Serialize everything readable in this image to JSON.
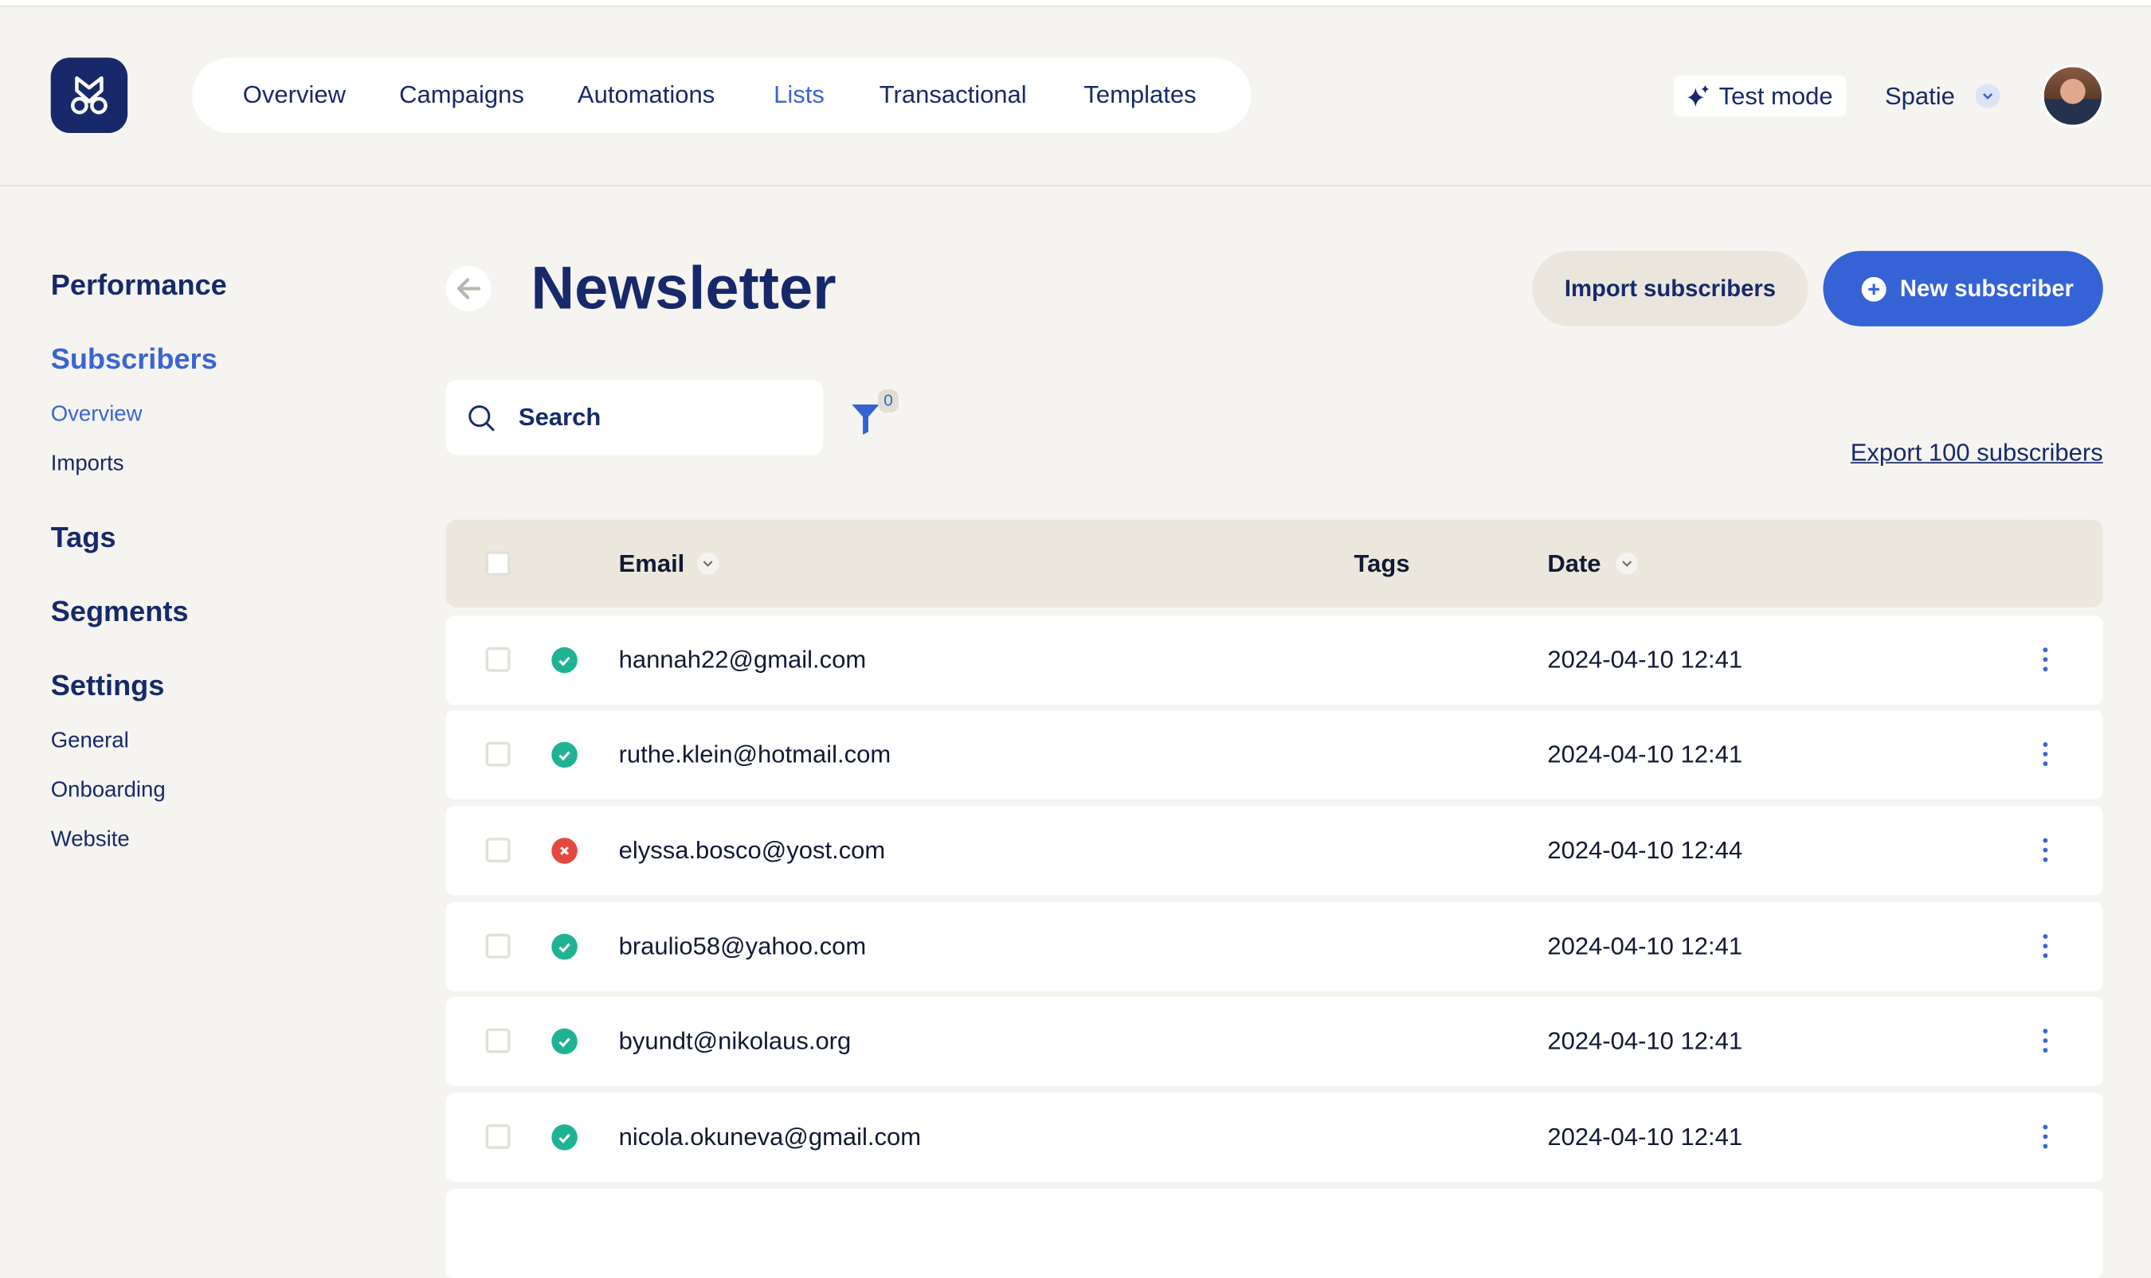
{
  "nav": {
    "items": [
      {
        "label": "Overview",
        "active": false
      },
      {
        "label": "Campaigns",
        "active": false
      },
      {
        "label": "Automations",
        "active": false
      },
      {
        "label": "Lists",
        "active": true
      },
      {
        "label": "Transactional",
        "active": false
      },
      {
        "label": "Templates",
        "active": false
      }
    ]
  },
  "header": {
    "test_mode": "Test mode",
    "team": "Spatie",
    "test_icon": "sparkles-icon"
  },
  "sidebar": {
    "performance": "Performance",
    "subscribers": "Subscribers",
    "subscribers_overview": "Overview",
    "imports": "Imports",
    "tags": "Tags",
    "segments": "Segments",
    "settings": "Settings",
    "general": "General",
    "onboarding": "Onboarding",
    "website": "Website"
  },
  "page": {
    "title": "Newsletter",
    "import_button": "Import subscribers",
    "new_button": "New subscriber",
    "search_placeholder": "Search",
    "filter_count": "0",
    "export_link": "Export 100 subscribers"
  },
  "table": {
    "columns": {
      "email": "Email",
      "tags": "Tags",
      "date": "Date"
    },
    "rows": [
      {
        "email": "hannah22@gmail.com",
        "date": "2024-04-10 12:41",
        "status": "subscribed"
      },
      {
        "email": "ruthe.klein@hotmail.com",
        "date": "2024-04-10 12:41",
        "status": "subscribed"
      },
      {
        "email": "elyssa.bosco@yost.com",
        "date": "2024-04-10 12:44",
        "status": "unsubscribed"
      },
      {
        "email": "braulio58@yahoo.com",
        "date": "2024-04-10 12:41",
        "status": "subscribed"
      },
      {
        "email": "byundt@nikolaus.org",
        "date": "2024-04-10 12:41",
        "status": "subscribed"
      },
      {
        "email": "nicola.okuneva@gmail.com",
        "date": "2024-04-10 12:41",
        "status": "subscribed"
      }
    ]
  },
  "colors": {
    "brand": "#17296b",
    "accent": "#3563d6",
    "subscribed": "#1fb394",
    "unsubscribed": "#e5483f",
    "background": "#f5f4f0"
  }
}
